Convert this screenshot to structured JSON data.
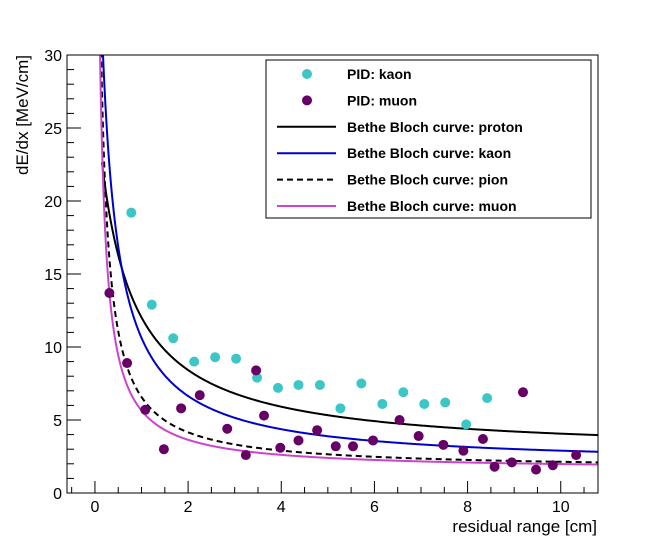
{
  "chart_data": {
    "type": "scatter",
    "title": "",
    "xlabel": "residual range [cm]",
    "ylabel": "dE/dx [MeV/cm]",
    "xlim": [
      -0.6,
      10.8
    ],
    "ylim": [
      0,
      30
    ],
    "x_ticks": [
      0,
      2,
      4,
      6,
      8,
      10
    ],
    "y_ticks": [
      0,
      5,
      10,
      15,
      20,
      25,
      30
    ],
    "grid": false,
    "legend_position": "top-right",
    "scatter_series": [
      {
        "name": "PID: kaon",
        "color": "#3cc6c6",
        "marker": "circle",
        "points": [
          [
            0.78,
            19.2
          ],
          [
            1.22,
            12.9
          ],
          [
            1.68,
            10.6
          ],
          [
            2.13,
            9.0
          ],
          [
            2.58,
            9.3
          ],
          [
            3.03,
            9.2
          ],
          [
            3.48,
            7.9
          ],
          [
            3.93,
            7.2
          ],
          [
            4.37,
            7.4
          ],
          [
            4.83,
            7.4
          ],
          [
            5.27,
            5.8
          ],
          [
            5.72,
            7.5
          ],
          [
            6.17,
            6.1
          ],
          [
            6.62,
            6.9
          ],
          [
            7.07,
            6.1
          ],
          [
            7.52,
            6.2
          ],
          [
            7.97,
            4.7
          ],
          [
            8.42,
            6.5
          ]
        ]
      },
      {
        "name": "PID: muon",
        "color": "#660066",
        "marker": "circle",
        "points": [
          [
            0.31,
            13.7
          ],
          [
            0.69,
            8.9
          ],
          [
            1.08,
            5.7
          ],
          [
            1.48,
            3.0
          ],
          [
            1.85,
            5.8
          ],
          [
            2.25,
            6.7
          ],
          [
            2.84,
            4.4
          ],
          [
            3.24,
            2.6
          ],
          [
            3.46,
            8.4
          ],
          [
            3.63,
            5.3
          ],
          [
            3.98,
            3.1
          ],
          [
            4.37,
            3.6
          ],
          [
            4.77,
            4.3
          ],
          [
            5.17,
            3.2
          ],
          [
            5.54,
            3.2
          ],
          [
            5.97,
            3.6
          ],
          [
            6.54,
            5.0
          ],
          [
            6.95,
            3.9
          ],
          [
            7.48,
            3.3
          ],
          [
            7.91,
            2.9
          ],
          [
            8.33,
            3.7
          ],
          [
            8.58,
            1.8
          ],
          [
            8.95,
            2.1
          ],
          [
            9.19,
            6.9
          ],
          [
            9.47,
            1.6
          ],
          [
            9.83,
            1.9
          ],
          [
            10.33,
            2.6
          ]
        ]
      }
    ],
    "curve_series": [
      {
        "name": "Bethe Bloch curve: proton",
        "color": "#000000",
        "dash": "solid",
        "A": 15.0,
        "B": 0.6,
        "C": 2.65,
        "x_start": 0.15,
        "x_end": 10.8
      },
      {
        "name": "Bethe Bloch curve: kaon",
        "color": "#0000cc",
        "dash": "solid",
        "A": 10.5,
        "B": 0.2,
        "C": 1.87,
        "x_start": 0.05,
        "x_end": 10.8
      },
      {
        "name": "Bethe Bloch curve: pion",
        "color": "#000000",
        "dash": "dashed",
        "A": 5.2,
        "B": 0.05,
        "C": 1.62,
        "x_start": 0.0,
        "x_end": 10.8
      },
      {
        "name": "Bethe Bloch curve: muon",
        "color": "#cc44cc",
        "dash": "solid",
        "A": 4.25,
        "B": 0.04,
        "C": 1.56,
        "x_start": 0.0,
        "x_end": 10.8
      }
    ],
    "legend": [
      {
        "label": "PID: kaon",
        "kind": "marker",
        "color": "#3cc6c6"
      },
      {
        "label": "PID: muon",
        "kind": "marker",
        "color": "#660066"
      },
      {
        "label": "Bethe Bloch curve: proton",
        "kind": "line",
        "color": "#000000",
        "dash": "solid"
      },
      {
        "label": "Bethe Bloch curve: kaon",
        "kind": "line",
        "color": "#0000cc",
        "dash": "solid"
      },
      {
        "label": "Bethe Bloch curve: pion",
        "kind": "line",
        "color": "#000000",
        "dash": "dashed"
      },
      {
        "label": "Bethe Bloch curve: muon",
        "kind": "line",
        "color": "#cc44cc",
        "dash": "solid"
      }
    ]
  }
}
